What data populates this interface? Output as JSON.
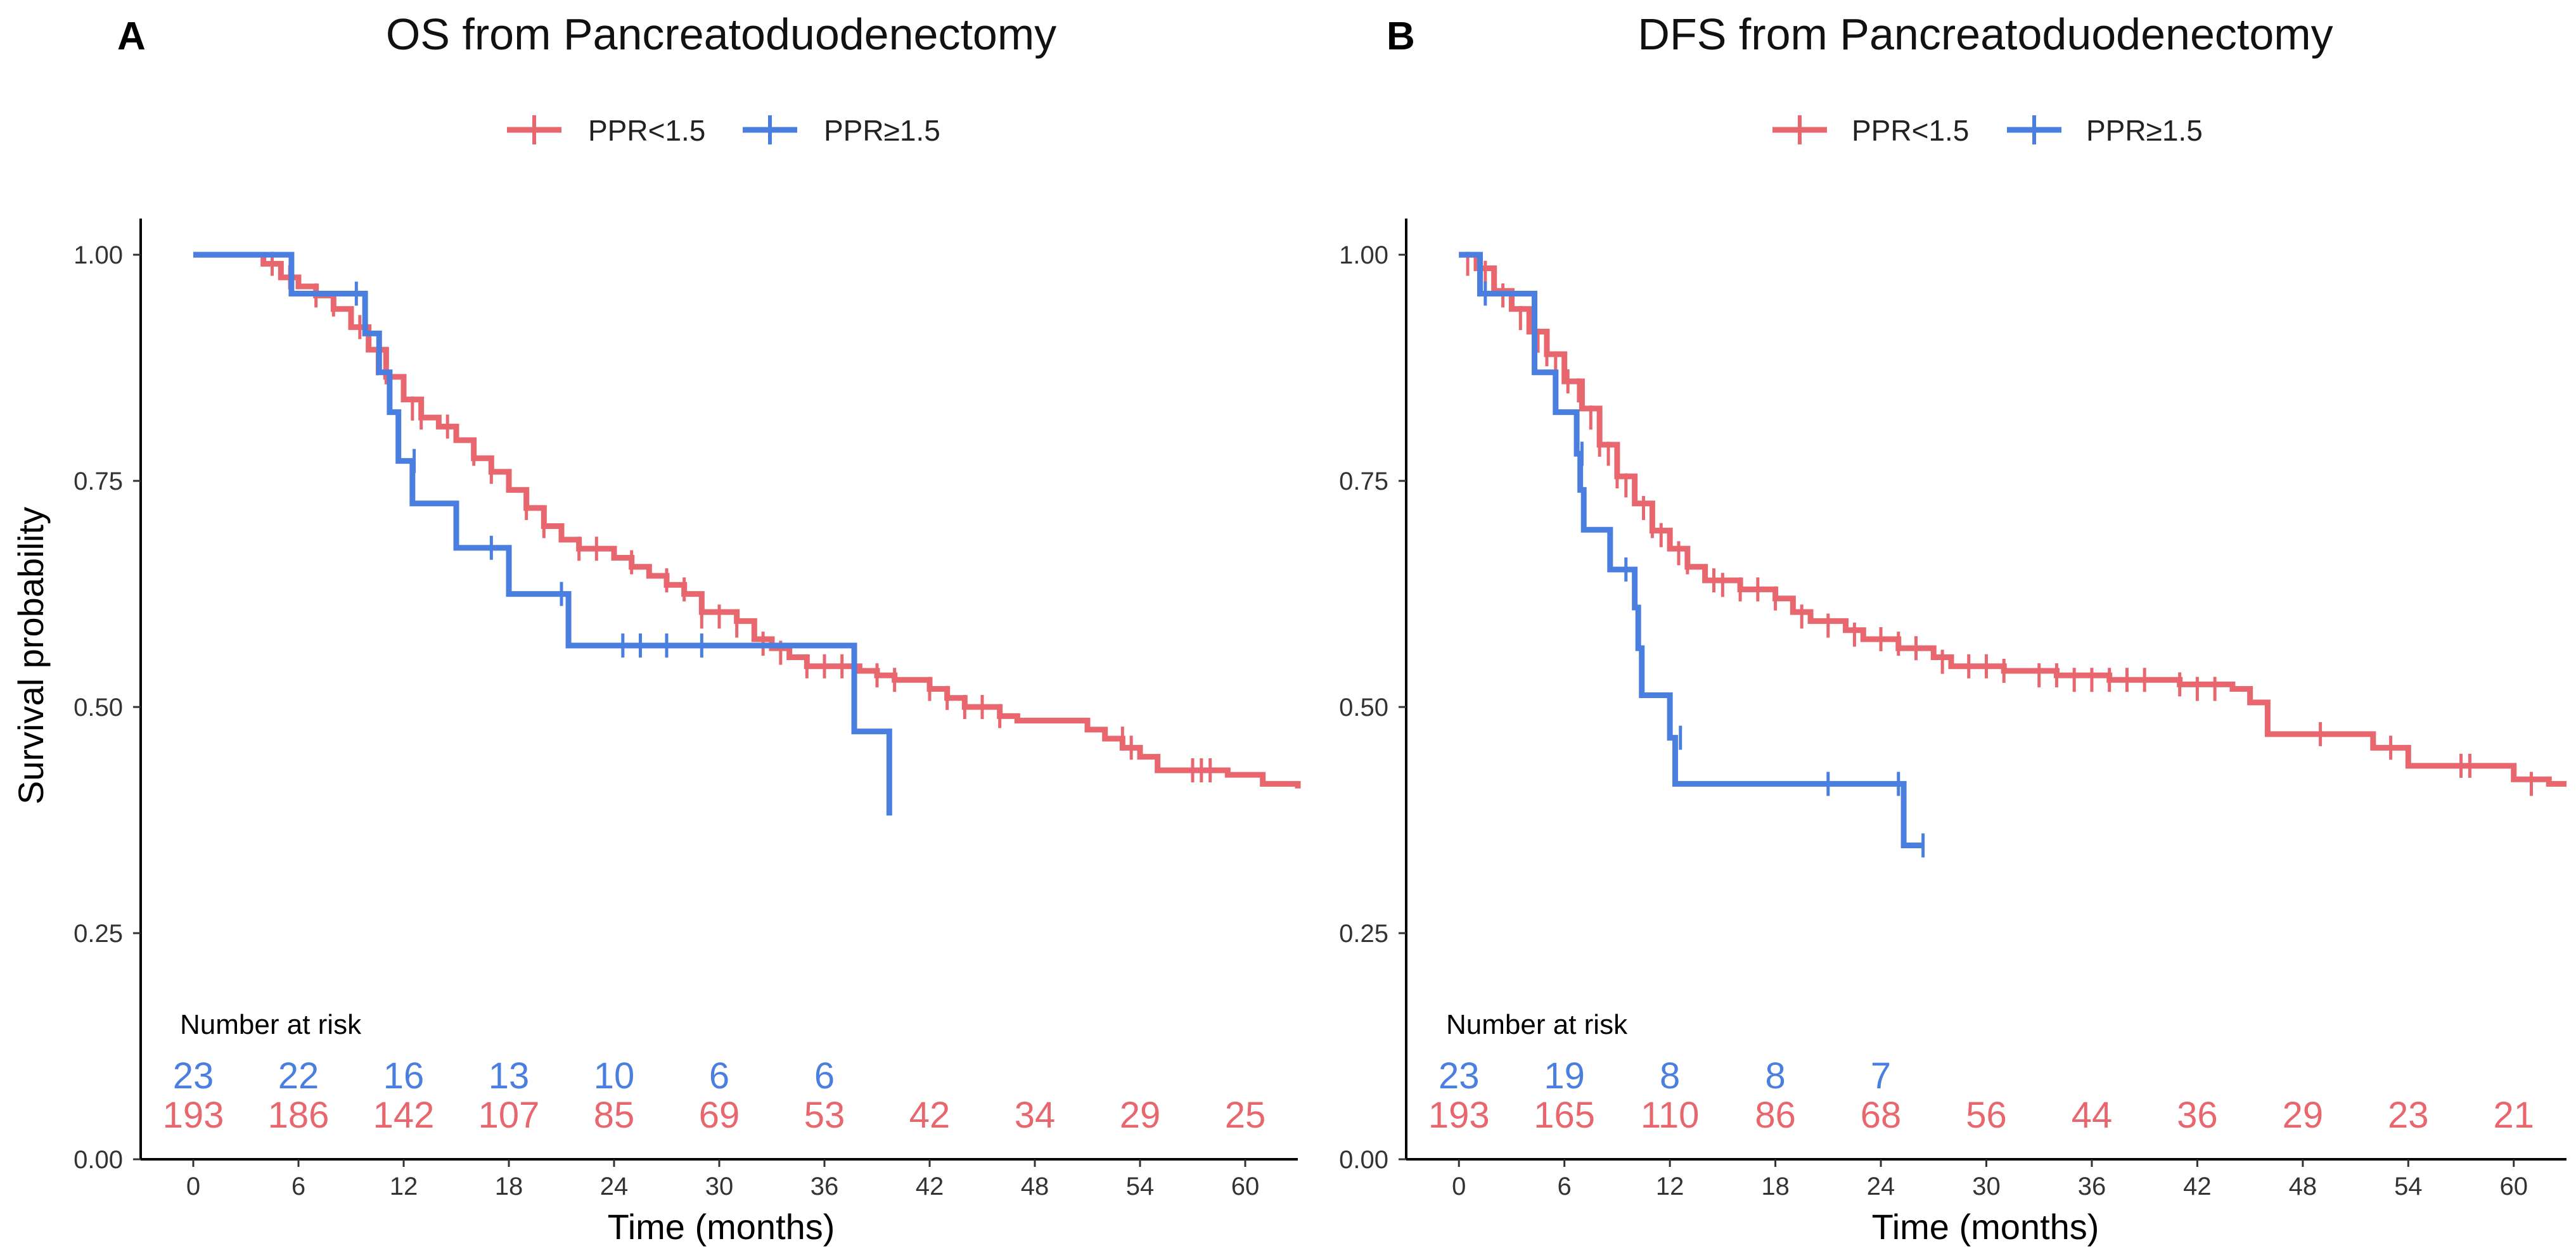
{
  "colors": {
    "low": "#E8666D",
    "high": "#4A7FE0",
    "axis": "#000000"
  },
  "y_axis_title": "Survival probability",
  "legend": {
    "low_label": "PPR<1.5",
    "high_label": "PPR≥1.5",
    "position": "top"
  },
  "risk_table_title": "Number at risk",
  "chart_data": [
    {
      "type": "line",
      "subtype": "kaplan-meier",
      "panel_label": "A",
      "title": "OS from Pancreatoduodenectomy",
      "xlabel": "Time (months)",
      "ylabel": "Survival probability",
      "xlim": [
        -3,
        63
      ],
      "ylim": [
        0,
        1.04
      ],
      "xticks": [
        0,
        6,
        12,
        18,
        24,
        30,
        36,
        42,
        48,
        54,
        60
      ],
      "yticks": [
        0.0,
        0.25,
        0.5,
        0.75,
        1.0
      ],
      "ytick_labels": [
        "0.00",
        "0.25",
        "0.50",
        "0.75",
        "1.00"
      ],
      "series": [
        {
          "name": "PPR<1.5",
          "color_key": "low",
          "steps": [
            [
              0,
              1.0
            ],
            [
              4,
              0.99
            ],
            [
              5,
              0.975
            ],
            [
              6,
              0.965
            ],
            [
              7,
              0.955
            ],
            [
              8,
              0.94
            ],
            [
              9,
              0.92
            ],
            [
              10,
              0.895
            ],
            [
              11,
              0.865
            ],
            [
              12,
              0.84
            ],
            [
              13,
              0.82
            ],
            [
              14,
              0.81
            ],
            [
              15,
              0.795
            ],
            [
              16,
              0.775
            ],
            [
              17,
              0.76
            ],
            [
              18,
              0.74
            ],
            [
              19,
              0.72
            ],
            [
              20,
              0.7
            ],
            [
              21,
              0.685
            ],
            [
              22,
              0.675
            ],
            [
              24,
              0.665
            ],
            [
              25,
              0.655
            ],
            [
              26,
              0.645
            ],
            [
              27,
              0.635
            ],
            [
              28,
              0.625
            ],
            [
              29,
              0.605
            ],
            [
              31,
              0.595
            ],
            [
              32,
              0.575
            ],
            [
              33,
              0.565
            ],
            [
              34,
              0.555
            ],
            [
              35,
              0.545
            ],
            [
              38,
              0.54
            ],
            [
              39,
              0.535
            ],
            [
              40,
              0.53
            ],
            [
              42,
              0.52
            ],
            [
              43,
              0.51
            ],
            [
              44,
              0.5
            ],
            [
              46,
              0.49
            ],
            [
              47,
              0.485
            ],
            [
              51,
              0.475
            ],
            [
              52,
              0.465
            ],
            [
              53,
              0.455
            ],
            [
              54,
              0.445
            ],
            [
              55,
              0.43
            ],
            [
              59,
              0.425
            ],
            [
              61,
              0.415
            ],
            [
              63,
              0.41
            ]
          ],
          "censors": [
            [
              4.5,
              0.99
            ],
            [
              5.5,
              0.975
            ],
            [
              7,
              0.955
            ],
            [
              8,
              0.945
            ],
            [
              9.5,
              0.92
            ],
            [
              10.5,
              0.88
            ],
            [
              11,
              0.87
            ],
            [
              12.5,
              0.83
            ],
            [
              13,
              0.82
            ],
            [
              14.5,
              0.81
            ],
            [
              16,
              0.78
            ],
            [
              17,
              0.76
            ],
            [
              19,
              0.72
            ],
            [
              20,
              0.7
            ],
            [
              22,
              0.675
            ],
            [
              23,
              0.675
            ],
            [
              25,
              0.66
            ],
            [
              27,
              0.64
            ],
            [
              28,
              0.63
            ],
            [
              29,
              0.6
            ],
            [
              30,
              0.6
            ],
            [
              31,
              0.59
            ],
            [
              32.5,
              0.57
            ],
            [
              33.5,
              0.56
            ],
            [
              35,
              0.545
            ],
            [
              36,
              0.545
            ],
            [
              37,
              0.545
            ],
            [
              39,
              0.535
            ],
            [
              40,
              0.53
            ],
            [
              42,
              0.52
            ],
            [
              43,
              0.51
            ],
            [
              44,
              0.5
            ],
            [
              45,
              0.5
            ],
            [
              46,
              0.49
            ],
            [
              53,
              0.465
            ],
            [
              53.5,
              0.455
            ],
            [
              57,
              0.43
            ],
            [
              57.5,
              0.43
            ],
            [
              58,
              0.43
            ]
          ],
          "end_x": 63
        },
        {
          "name": "PPR≥1.5",
          "color_key": "high",
          "steps": [
            [
              0,
              1.0
            ],
            [
              5.6,
              0.957
            ],
            [
              9.8,
              0.913
            ],
            [
              10.6,
              0.87
            ],
            [
              11.2,
              0.826
            ],
            [
              11.7,
              0.772
            ],
            [
              12.5,
              0.725
            ],
            [
              15,
              0.676
            ],
            [
              18,
              0.625
            ],
            [
              21.4,
              0.568
            ],
            [
              37.7,
              0.473
            ],
            [
              39.7,
              0.38
            ]
          ],
          "censors": [
            [
              9.3,
              0.957
            ],
            [
              12.6,
              0.772
            ],
            [
              17,
              0.676
            ],
            [
              21,
              0.625
            ],
            [
              24.5,
              0.568
            ],
            [
              25.5,
              0.568
            ],
            [
              27,
              0.568
            ],
            [
              29,
              0.568
            ]
          ],
          "end_x": 39.7
        }
      ],
      "risk_table": {
        "times": [
          0,
          6,
          12,
          18,
          24,
          30,
          36,
          42,
          48,
          54,
          60
        ],
        "rows": [
          {
            "name": "PPR≥1.5",
            "color_key": "high",
            "values": [
              "23",
              "22",
              "16",
              "13",
              "10",
              "6",
              "6"
            ]
          },
          {
            "name": "PPR<1.5",
            "color_key": "low",
            "values": [
              "193",
              "186",
              "142",
              "107",
              "85",
              "69",
              "53",
              "42",
              "34",
              "29",
              "25"
            ]
          }
        ]
      }
    },
    {
      "type": "line",
      "subtype": "kaplan-meier",
      "panel_label": "B",
      "title": "DFS from Pancreatoduodenectomy",
      "xlabel": "Time (months)",
      "ylabel": "Survival probability",
      "xlim": [
        -3,
        63
      ],
      "ylim": [
        0,
        1.04
      ],
      "xticks": [
        0,
        6,
        12,
        18,
        24,
        30,
        36,
        42,
        48,
        54,
        60
      ],
      "yticks": [
        0.0,
        0.25,
        0.5,
        0.75,
        1.0
      ],
      "ytick_labels": [
        "0.00",
        "0.25",
        "0.50",
        "0.75",
        "1.00"
      ],
      "series": [
        {
          "name": "PPR<1.5",
          "color_key": "low",
          "steps": [
            [
              0,
              1.0
            ],
            [
              1,
              0.985
            ],
            [
              2,
              0.96
            ],
            [
              3,
              0.94
            ],
            [
              4,
              0.915
            ],
            [
              5,
              0.89
            ],
            [
              6,
              0.86
            ],
            [
              7,
              0.83
            ],
            [
              8,
              0.79
            ],
            [
              9,
              0.755
            ],
            [
              10,
              0.725
            ],
            [
              11,
              0.695
            ],
            [
              12,
              0.675
            ],
            [
              13,
              0.655
            ],
            [
              14,
              0.64
            ],
            [
              16,
              0.63
            ],
            [
              18,
              0.62
            ],
            [
              19,
              0.605
            ],
            [
              20,
              0.595
            ],
            [
              22,
              0.585
            ],
            [
              23,
              0.575
            ],
            [
              25,
              0.565
            ],
            [
              27,
              0.555
            ],
            [
              28,
              0.545
            ],
            [
              31,
              0.54
            ],
            [
              34,
              0.535
            ],
            [
              37,
              0.53
            ],
            [
              41,
              0.525
            ],
            [
              44,
              0.52
            ],
            [
              45,
              0.505
            ],
            [
              46,
              0.47
            ],
            [
              52,
              0.455
            ],
            [
              54,
              0.435
            ],
            [
              60,
              0.42
            ],
            [
              62,
              0.415
            ],
            [
              63,
              0.415
            ]
          ],
          "censors": [
            [
              0.5,
              0.99
            ],
            [
              1.5,
              0.98
            ],
            [
              2.5,
              0.955
            ],
            [
              3.5,
              0.93
            ],
            [
              4.5,
              0.905
            ],
            [
              5,
              0.89
            ],
            [
              5.5,
              0.88
            ],
            [
              6.2,
              0.86
            ],
            [
              6.8,
              0.85
            ],
            [
              7.5,
              0.82
            ],
            [
              8,
              0.79
            ],
            [
              8.5,
              0.78
            ],
            [
              9,
              0.755
            ],
            [
              9.5,
              0.745
            ],
            [
              10.5,
              0.72
            ],
            [
              11,
              0.7
            ],
            [
              11.5,
              0.69
            ],
            [
              12.5,
              0.67
            ],
            [
              13,
              0.66
            ],
            [
              14.5,
              0.64
            ],
            [
              15,
              0.635
            ],
            [
              16,
              0.63
            ],
            [
              17,
              0.63
            ],
            [
              18,
              0.62
            ],
            [
              19.5,
              0.6
            ],
            [
              21,
              0.59
            ],
            [
              22.5,
              0.58
            ],
            [
              24,
              0.575
            ],
            [
              25,
              0.57
            ],
            [
              26,
              0.565
            ],
            [
              27.5,
              0.55
            ],
            [
              29,
              0.545
            ],
            [
              30,
              0.545
            ],
            [
              31,
              0.54
            ],
            [
              33,
              0.535
            ],
            [
              34,
              0.535
            ],
            [
              35,
              0.53
            ],
            [
              36,
              0.53
            ],
            [
              37,
              0.53
            ],
            [
              38,
              0.53
            ],
            [
              39,
              0.53
            ],
            [
              41,
              0.525
            ],
            [
              42,
              0.52
            ],
            [
              43,
              0.52
            ],
            [
              49,
              0.47
            ],
            [
              53,
              0.455
            ],
            [
              57,
              0.435
            ],
            [
              57.5,
              0.435
            ],
            [
              61,
              0.415
            ]
          ],
          "end_x": 63
        },
        {
          "name": "PPR≥1.5",
          "color_key": "high",
          "steps": [
            [
              0,
              1.0
            ],
            [
              1.2,
              0.957
            ],
            [
              4.3,
              0.87
            ],
            [
              5.5,
              0.826
            ],
            [
              6.7,
              0.78
            ],
            [
              6.9,
              0.74
            ],
            [
              7.1,
              0.696
            ],
            [
              8.6,
              0.652
            ],
            [
              10,
              0.61
            ],
            [
              10.2,
              0.565
            ],
            [
              10.4,
              0.513
            ],
            [
              12,
              0.466
            ],
            [
              12.3,
              0.415
            ],
            [
              25.3,
              0.347
            ],
            [
              26.4,
              0.347
            ]
          ],
          "censors": [
            [
              1.5,
              0.957
            ],
            [
              7,
              0.78
            ],
            [
              9.5,
              0.652
            ],
            [
              12.6,
              0.466
            ],
            [
              21,
              0.415
            ],
            [
              25,
              0.415
            ],
            [
              26.4,
              0.347
            ]
          ],
          "end_x": 26.4
        }
      ],
      "risk_table": {
        "times": [
          0,
          6,
          12,
          18,
          24,
          30,
          36,
          42,
          48,
          54,
          60
        ],
        "rows": [
          {
            "name": "PPR≥1.5",
            "color_key": "high",
            "values": [
              "23",
              "19",
              "8",
              "8",
              "7"
            ]
          },
          {
            "name": "PPR<1.5",
            "color_key": "low",
            "values": [
              "193",
              "165",
              "110",
              "86",
              "68",
              "56",
              "44",
              "36",
              "29",
              "23",
              "21"
            ]
          }
        ]
      }
    }
  ]
}
